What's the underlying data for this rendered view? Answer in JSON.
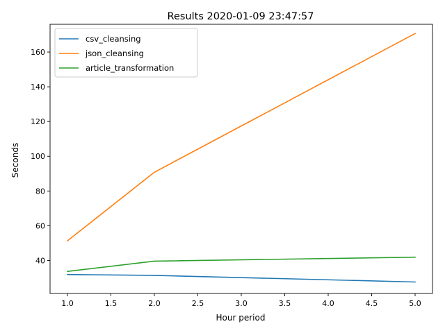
{
  "chart_data": {
    "type": "line",
    "title": "Results 2020-01-09 23:47:57",
    "xlabel": "Hour period",
    "ylabel": "Seconds",
    "xlim": [
      0.8,
      5.2
    ],
    "ylim": [
      21,
      176
    ],
    "xticks": [
      1.0,
      1.5,
      2.0,
      2.5,
      3.0,
      3.5,
      4.0,
      4.5,
      5.0
    ],
    "xtick_labels": [
      "1.0",
      "1.5",
      "2.0",
      "2.5",
      "3.0",
      "3.5",
      "4.0",
      "4.5",
      "5.0"
    ],
    "yticks": [
      40,
      60,
      80,
      100,
      120,
      140,
      160
    ],
    "ytick_labels": [
      "40",
      "60",
      "80",
      "100",
      "120",
      "140",
      "160"
    ],
    "grid": false,
    "legend_position": "top-left",
    "series": [
      {
        "name": "csv_cleansing",
        "color": "#1f77b4",
        "x": [
          1,
          2,
          5
        ],
        "y": [
          31.9,
          31.4,
          27.6
        ]
      },
      {
        "name": "json_cleansing",
        "color": "#ff7f0e",
        "x": [
          1,
          2,
          5
        ],
        "y": [
          51.3,
          90.8,
          170.7
        ]
      },
      {
        "name": "article_transformation",
        "color": "#2ca02c",
        "x": [
          1,
          2,
          5
        ],
        "y": [
          33.7,
          39.6,
          41.9
        ]
      }
    ]
  }
}
